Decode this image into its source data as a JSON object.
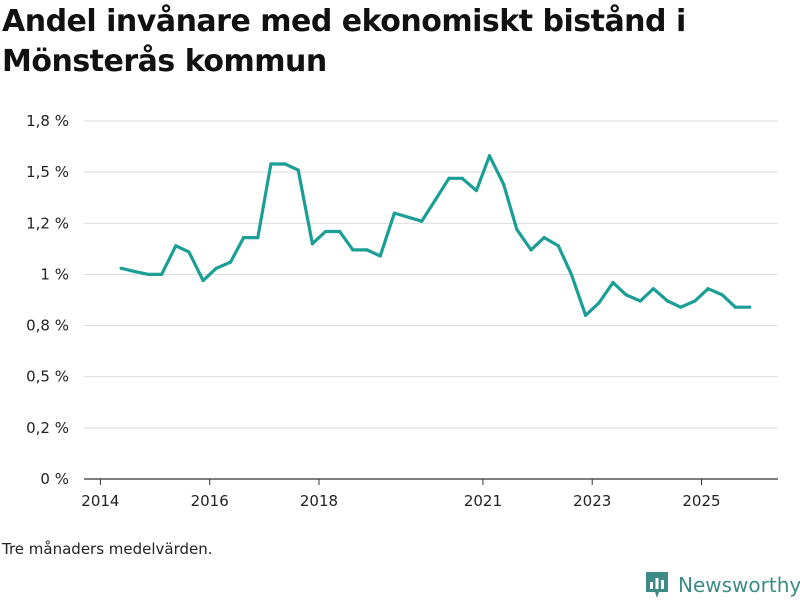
{
  "title": "Andel invånare med ekonomiskt bistånd i Mönsterås kommun",
  "note": "Tre månaders medelvärden.",
  "brand": {
    "name": "Newsworthy",
    "icon": "newsworthy-logo-icon",
    "color": "#3d8b87"
  },
  "colors": {
    "line": "#1a9e96",
    "grid": "#d9d9d9",
    "axis": "#333333",
    "text": "#222222"
  },
  "chart_data": {
    "type": "line",
    "title": "Andel invånare med ekonomiskt bistånd i Mönsterås kommun",
    "xlabel": "",
    "ylabel": "",
    "unit": "%",
    "ylim": [
      0,
      1.75
    ],
    "yticks": [
      {
        "value": 0,
        "label": "0 %"
      },
      {
        "value": 0.25,
        "label": "0,2 %"
      },
      {
        "value": 0.5,
        "label": "0,5 %"
      },
      {
        "value": 0.75,
        "label": "0,8 %"
      },
      {
        "value": 1.0,
        "label": "1 %"
      },
      {
        "value": 1.25,
        "label": "1,2 %"
      },
      {
        "value": 1.5,
        "label": "1,5 %"
      },
      {
        "value": 1.75,
        "label": "1,8 %"
      }
    ],
    "xlim": [
      2013.7,
      2026.4
    ],
    "xticks": [
      {
        "value": 2014,
        "label": "2014"
      },
      {
        "value": 2016,
        "label": "2016"
      },
      {
        "value": 2018,
        "label": "2018"
      },
      {
        "value": 2021,
        "label": "2021"
      },
      {
        "value": 2023,
        "label": "2023"
      },
      {
        "value": 2025,
        "label": "2025"
      }
    ],
    "series": [
      {
        "name": "Andel invånare med ekonomiskt bistånd",
        "x": [
          2014.38,
          2014.62,
          2014.88,
          2015.12,
          2015.38,
          2015.62,
          2015.88,
          2016.12,
          2016.38,
          2016.62,
          2016.88,
          2017.12,
          2017.38,
          2017.62,
          2017.88,
          2018.12,
          2018.38,
          2018.62,
          2018.88,
          2019.12,
          2019.38,
          2019.88,
          2020.12,
          2020.38,
          2020.62,
          2020.88,
          2021.12,
          2021.38,
          2021.62,
          2021.88,
          2022.12,
          2022.38,
          2022.62,
          2022.88,
          2023.12,
          2023.38,
          2023.62,
          2023.88,
          2024.12,
          2024.38,
          2024.62,
          2024.88,
          2025.12,
          2025.38,
          2025.62,
          2025.88
        ],
        "values": [
          1.03,
          1.015,
          1.0,
          1.0,
          1.14,
          1.11,
          0.97,
          1.03,
          1.06,
          1.18,
          1.18,
          1.54,
          1.54,
          1.51,
          1.15,
          1.21,
          1.21,
          1.12,
          1.12,
          1.09,
          1.3,
          1.26,
          1.36,
          1.47,
          1.47,
          1.41,
          1.58,
          1.44,
          1.22,
          1.12,
          1.18,
          1.14,
          1.0,
          0.8,
          0.86,
          0.96,
          0.9,
          0.87,
          0.93,
          0.87,
          0.84,
          0.87,
          0.93,
          0.9,
          0.84,
          0.84
        ]
      }
    ]
  }
}
